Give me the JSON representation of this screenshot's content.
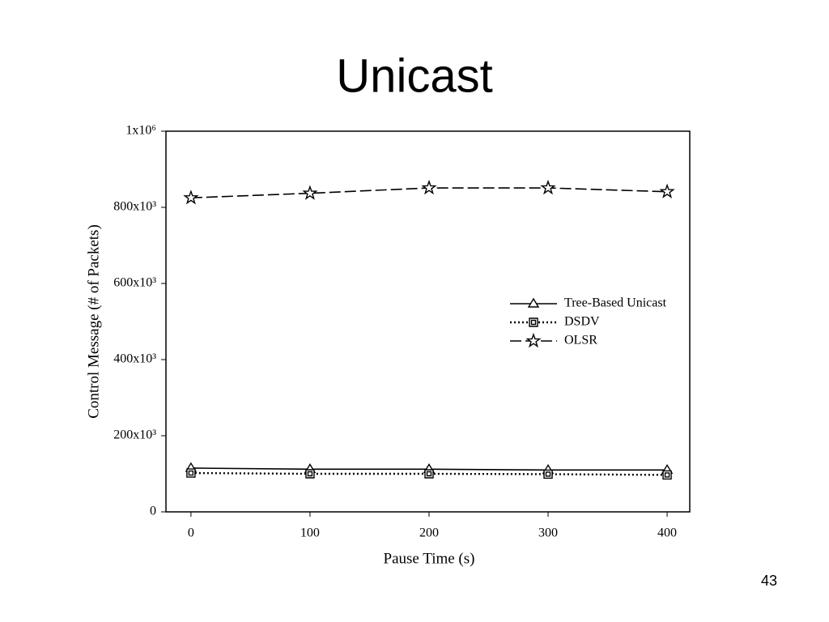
{
  "slide_title": "Unicast",
  "page_number": "43",
  "chart_data": {
    "type": "line",
    "xlabel": "Pause Time (s)",
    "ylabel": "Control Message (# of Packets)",
    "x": [
      0,
      100,
      200,
      300,
      400
    ],
    "xlim": [
      -21,
      419
    ],
    "xticks": [
      0,
      100,
      200,
      300,
      400
    ],
    "ylim": [
      0,
      1000000
    ],
    "yticks": [
      0,
      {
        "value": 200000,
        "label": "200x10³"
      },
      {
        "value": 400000,
        "label": "400x10³"
      },
      {
        "value": 600000,
        "label": "600x10³"
      },
      {
        "value": 800000,
        "label": "800x10³"
      },
      {
        "value": 1000000,
        "label": "1x10⁶"
      }
    ],
    "legend": "right",
    "series": [
      {
        "name": "Tree-Based Unicast",
        "color": "#000000",
        "marker": "triangle",
        "dash": "solid",
        "values": [
          115000,
          112000,
          112000,
          110000,
          110000
        ]
      },
      {
        "name": "DSDV",
        "color": "#000000",
        "marker": "square",
        "dash": "dotted",
        "values": [
          102000,
          100000,
          100000,
          99000,
          97000
        ]
      },
      {
        "name": "OLSR",
        "color": "#000000",
        "marker": "star",
        "dash": "dashed",
        "values": [
          825000,
          837000,
          851000,
          851000,
          841000
        ]
      }
    ]
  }
}
